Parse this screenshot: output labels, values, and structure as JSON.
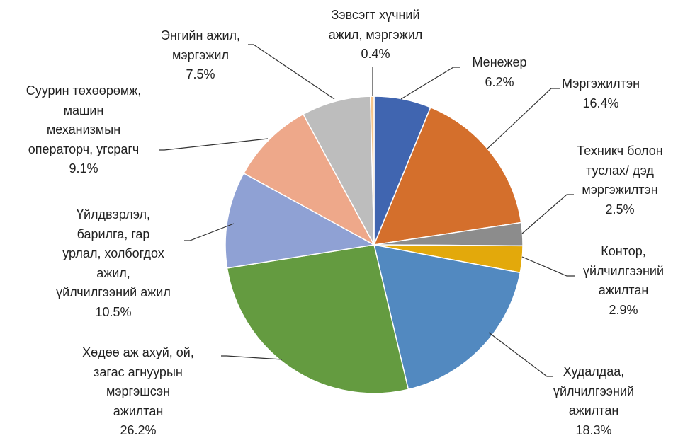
{
  "chart_data": {
    "type": "pie",
    "categories": [
      "Менежер",
      "Мэргэжилтэн",
      "Техникч болон\nтуслах/ дэд\nмэргэжилтэн",
      "Контор,\nүйлчилгээний\nажилтан",
      "Худалдаа,\nүйлчилгээний\nажилтан",
      "Хөдөө аж ахуй, ой,\nзагас агнуурын\nмэргэшсэн\nажилтан",
      "Үйлдвэрлэл,\nбарилга, гар\nурлал, холбогдох\nажил,\nүйлчилгээний ажил",
      "Суурин төхөөрөмж,\nмашин\nмеханизмын\nоператорч, угсрагч",
      "Энгийн ажил,\nмэргэжил",
      "Зэвсэгт хүчний\nажил, мэргэжил"
    ],
    "values": [
      6.2,
      16.4,
      2.5,
      2.9,
      18.3,
      26.2,
      10.5,
      9.1,
      7.5,
      0.4
    ],
    "value_labels": [
      "6.2%",
      "16.4%",
      "2.5%",
      "2.9%",
      "18.3%",
      "26.2%",
      "10.5%",
      "9.1%",
      "7.5%",
      "0.4%"
    ],
    "colors": [
      "#4065b0",
      "#d46f2c",
      "#8c8c8c",
      "#e3a90b",
      "#5289c0",
      "#649b40",
      "#8fa1d4",
      "#eea88a",
      "#bdbdbd",
      "#f7c68b"
    ]
  }
}
